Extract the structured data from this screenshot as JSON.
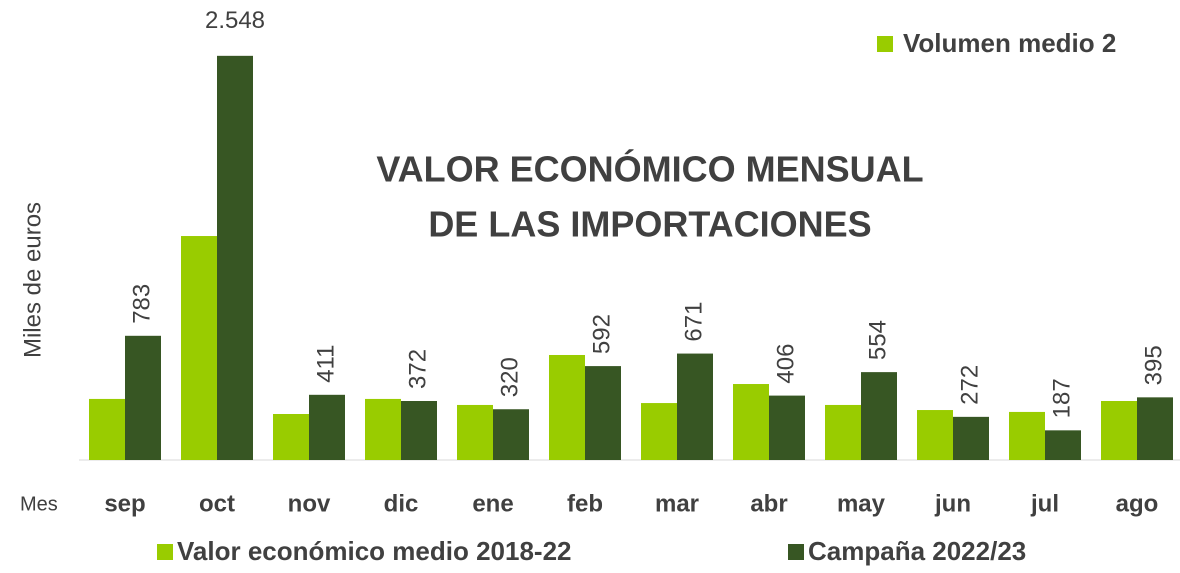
{
  "chart_data": {
    "type": "bar",
    "title": [
      "VALOR ECONÓMICO MENSUAL",
      "DE LAS IMPORTACIONES"
    ],
    "y_label": "Miles de euros",
    "x_label": "Mes",
    "top_legend": {
      "name": "Volumen medio 2",
      "color": "#99cc00"
    },
    "categories": [
      "sep",
      "oct",
      "nov",
      "dic",
      "ene",
      "feb",
      "mar",
      "abr",
      "may",
      "jun",
      "jul",
      "ago"
    ],
    "series": [
      {
        "name": "Valor económico medio 2018-22",
        "color": "#99cc00",
        "values": [
          385,
          1412,
          290,
          385,
          347,
          662,
          359,
          479,
          347,
          315,
          303,
          372
        ]
      },
      {
        "name": "Campaña 2022/23",
        "color": "#375623",
        "values": [
          783,
          2548,
          411,
          372,
          320,
          592,
          671,
          406,
          554,
          272,
          187,
          395
        ],
        "value_labels": [
          "783",
          "2.548",
          "411",
          "372",
          "320",
          "592",
          "671",
          "406",
          "554",
          "272",
          "187",
          "395"
        ]
      }
    ],
    "ylim": [
      0,
      2900
    ]
  }
}
